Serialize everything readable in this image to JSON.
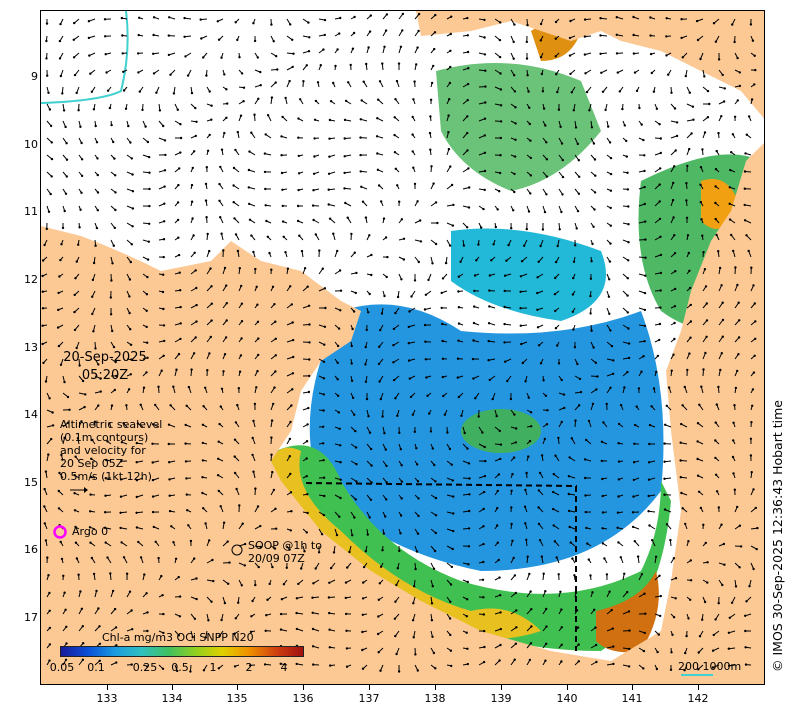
{
  "map": {
    "lat_ticks": [
      "9",
      "10",
      "11",
      "12",
      "13",
      "14",
      "15",
      "16",
      "17"
    ],
    "lon_ticks": [
      "133",
      "134",
      "135",
      "136",
      "137",
      "138",
      "139",
      "140",
      "141",
      "142"
    ],
    "date_line1": "20-Sep-2025",
    "date_line2": "05:20Z",
    "altimetry_lines": [
      "Altimetric sealevel",
      "(0.1m contours)",
      "and velocity for",
      "20 Sep 05Z",
      "0.5m/s (1kt 12h)"
    ],
    "argo_label": "Argo 0",
    "argo_color": "#ff00ff",
    "soop_lines": [
      "SOOP @1h to",
      "20/09 07Z"
    ],
    "scale_label": "200  1000m",
    "credit": "© IMOS 30-Sep-2025 12:36:43 Hobart time",
    "land_color": "#fcc995",
    "bathy_color": "#40d0d0"
  },
  "colorbar": {
    "title": "Chl-a mg/m3 OCi SNPP N20",
    "labels": [
      "0.05",
      "0.1",
      "0.25",
      "0.5",
      "1",
      "2",
      "4"
    ],
    "colors": [
      "#1a1a9a",
      "#0a4fd6",
      "#1c9ae0",
      "#30c0c0",
      "#40c060",
      "#90d020",
      "#e0d000",
      "#f09000",
      "#d04010",
      "#a01010"
    ]
  }
}
